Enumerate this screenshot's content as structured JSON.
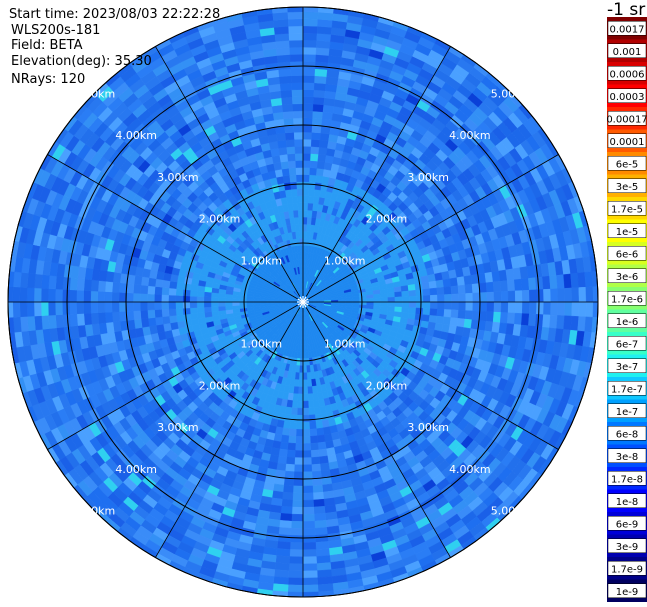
{
  "header": {
    "start_time": "Start time: 2023/08/03 22:22:28",
    "instrument": "WLS200s-181",
    "field": "Field: BETA",
    "elevation": "Elevation(deg): 35.30",
    "nrays": "NRays: 120"
  },
  "colorbar": {
    "unit": "-1 sr",
    "labels": [
      "0.0017",
      "0.001",
      "0.0006",
      "0.0003",
      "0.00017",
      "0.0001",
      "6e-5",
      "3e-5",
      "1.7e-5",
      "1e-5",
      "6e-6",
      "3e-6",
      "1.7e-6",
      "1e-6",
      "6e-7",
      "3e-7",
      "1.7e-7",
      "1e-7",
      "6e-8",
      "3e-8",
      "1.7e-8",
      "1e-8",
      "6e-9",
      "3e-9",
      "1.7e-9",
      "1e-9"
    ],
    "colors": [
      "#800000",
      "#b00000",
      "#d80000",
      "#ff0000",
      "#ff2800",
      "#ff5a00",
      "#ff8a00",
      "#ffb000",
      "#ffd800",
      "#ffff00",
      "#d8ff20",
      "#b0ff48",
      "#88ff70",
      "#60ffa0",
      "#38ffc8",
      "#20f0f0",
      "#10c8ff",
      "#00a0ff",
      "#0078ff",
      "#0050ff",
      "#0028ff",
      "#0000ff",
      "#0000d8",
      "#0000b0",
      "#000088",
      "#000060"
    ]
  },
  "chart_data": {
    "type": "heatmap",
    "projection": "polar-ppi",
    "field": "BETA",
    "nrays": 120,
    "range_ring_labels": [
      "1.00km",
      "2.00km",
      "3.00km",
      "4.00km",
      "5.00km"
    ],
    "ring_ranges_km": [
      1,
      2,
      3,
      4,
      5
    ],
    "spoke_angles_deg": [
      0,
      30,
      60,
      90,
      120,
      150,
      180,
      210,
      240,
      270,
      300,
      330
    ],
    "dominant_value_range": [
      "1e-8",
      "6e-8"
    ],
    "grid": true
  }
}
